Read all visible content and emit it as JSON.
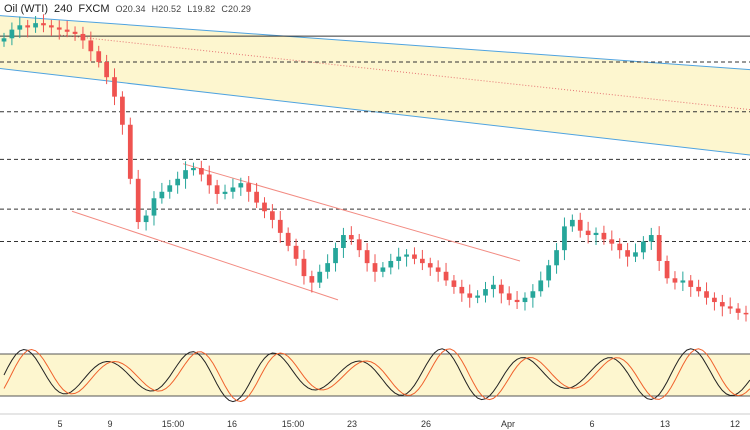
{
  "header": {
    "symbol": "Oil (WTI)",
    "interval": "240",
    "source": "FXCM",
    "open": "O20.34",
    "high": "H20.52",
    "low": "L19.82",
    "close": "C20.29"
  },
  "colors": {
    "up": "#26a69a",
    "down": "#ef5350",
    "channel_line": "#4fa3e0",
    "channel_fill": "#fdf6cf",
    "mid_line": "#e57373",
    "wedge_line": "#f28b82",
    "level_line": "#333333",
    "stoch_k": "#222222",
    "stoch_d": "#f0622d",
    "stoch_band": "#fdf6cf"
  },
  "chart_data": {
    "type": "candlestick",
    "interval_hours": 4,
    "x_tick_labels": [
      "5",
      "9",
      "15:00",
      "16",
      "15:00",
      "23",
      "26",
      "Apr",
      "6",
      "13",
      "12"
    ],
    "y_axis_visible": false,
    "grid": false,
    "price_range_estimate": [
      19.5,
      34.0
    ],
    "ohlc_close_path_estimate": [
      33.0,
      33.4,
      33.6,
      33.5,
      33.7,
      33.6,
      33.5,
      33.4,
      33.3,
      33.2,
      32.9,
      32.4,
      31.9,
      31.2,
      30.3,
      29.0,
      26.5,
      24.5,
      24.8,
      25.6,
      25.9,
      26.2,
      26.5,
      26.9,
      27.0,
      26.7,
      26.2,
      25.8,
      25.9,
      26.1,
      26.3,
      25.9,
      25.4,
      25.0,
      24.6,
      24.0,
      23.4,
      22.8,
      22.0,
      21.7,
      22.2,
      22.6,
      23.3,
      23.9,
      23.7,
      23.2,
      22.6,
      22.2,
      22.4,
      22.7,
      22.9,
      23.0,
      22.8,
      22.6,
      22.4,
      22.2,
      21.8,
      21.5,
      21.2,
      21.0,
      21.1,
      21.4,
      21.6,
      21.2,
      20.9,
      20.8,
      21.0,
      21.3,
      21.8,
      22.5,
      23.2,
      24.3,
      24.6,
      24.1,
      23.9,
      24.0,
      23.7,
      23.5,
      23.2,
      22.9,
      23.1,
      23.6,
      23.9,
      22.7,
      21.9,
      21.7,
      21.8,
      21.5,
      21.3,
      21.0,
      20.8,
      20.6,
      20.5,
      20.3,
      20.29
    ],
    "horizontal_levels": [
      33.1,
      31.9,
      29.6,
      27.4,
      25.1,
      23.6
    ],
    "descending_channel": {
      "upper_line": "from ~34.0 to ~31.6",
      "lower_line": "from ~31.6 to ~27.6"
    },
    "falling_wedge": {
      "upper_line": "from ~27.2 to ~22.7",
      "lower_line": "from ~25.0 to ~20.8"
    },
    "stochastic": {
      "lines": [
        "%K",
        "%D"
      ],
      "band": [
        20,
        80
      ],
      "range": [
        0,
        100
      ]
    }
  }
}
